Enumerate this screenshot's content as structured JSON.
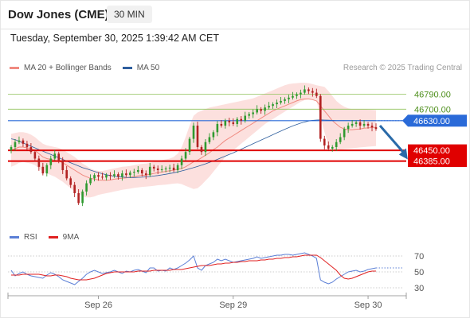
{
  "header": {
    "title": "Dow Jones (CME)",
    "interval": "30 MIN",
    "datetime": "Tuesday, September 30, 2025 1:39:42 AM CET"
  },
  "legend": {
    "price": [
      {
        "label": "MA 20 + Bollinger Bands",
        "color": "#f08a80"
      },
      {
        "label": "MA 50",
        "color": "#2f5f9e"
      }
    ],
    "rsi": [
      {
        "label": "RSI",
        "color": "#5b7fd6"
      },
      {
        "label": "9MA",
        "color": "#e02020"
      }
    ],
    "credit": "Research © 2025 Trading Central"
  },
  "chart_data": [
    {
      "type": "candlestick",
      "name": "price",
      "ylim": [
        46050,
        46880
      ],
      "levels": [
        {
          "value": 46790,
          "label": "46790.00",
          "kind": "resistance",
          "color": "#8fc25a"
        },
        {
          "value": 46700,
          "label": "46700.00",
          "kind": "resistance",
          "color": "#8fc25a"
        },
        {
          "value": 46630,
          "label": "46630.00",
          "kind": "current",
          "color": "#2a6ad8"
        },
        {
          "value": 46450,
          "label": "46450.00",
          "kind": "support",
          "color": "#e00000"
        },
        {
          "value": 46385,
          "label": "46385.00",
          "kind": "support",
          "color": "#e00000"
        }
      ],
      "x_ticks": [
        {
          "label": "Sep 26",
          "index": 22
        },
        {
          "label": "Sep 29",
          "index": 56
        },
        {
          "label": "Sep 30",
          "index": 90
        }
      ],
      "forecast_arrow": {
        "from_index": 93,
        "from_value": 46600,
        "to_index": 100,
        "to_value": 46395,
        "color": "#2a6aa8"
      },
      "closes": [
        46470,
        46500,
        46510,
        46490,
        46470,
        46440,
        46400,
        46350,
        46310,
        46360,
        46400,
        46430,
        46390,
        46330,
        46280,
        46240,
        46190,
        46130,
        46200,
        46250,
        46280,
        46300,
        46290,
        46285,
        46300,
        46295,
        46305,
        46290,
        46310,
        46300,
        46315,
        46320,
        46330,
        46310,
        46300,
        46350,
        46340,
        46330,
        46335,
        46340,
        46345,
        46330,
        46360,
        46400,
        46440,
        46520,
        46600,
        46470,
        46440,
        46500,
        46530,
        46560,
        46610,
        46600,
        46630,
        46620,
        46610,
        46640,
        46630,
        46660,
        46670,
        46680,
        46700,
        46690,
        46710,
        46720,
        46730,
        46740,
        46750,
        46760,
        46770,
        46780,
        46790,
        46800,
        46820,
        46810,
        46800,
        46780,
        46520,
        46480,
        46460,
        46470,
        46500,
        46530,
        46580,
        46600,
        46610,
        46620,
        46600,
        46610,
        46600,
        46590,
        46580
      ],
      "ma20": [
        46450,
        46460,
        46470,
        46470,
        46465,
        46460,
        46450,
        46430,
        46410,
        46400,
        46395,
        46390,
        46385,
        46375,
        46360,
        46345,
        46330,
        46315,
        46300,
        46290,
        46280,
        46275,
        46270,
        46268,
        46268,
        46270,
        46275,
        46278,
        46280,
        46283,
        46287,
        46290,
        46295,
        46298,
        46300,
        46305,
        46310,
        46315,
        46318,
        46322,
        46326,
        46330,
        46335,
        46340,
        46350,
        46365,
        46380,
        46390,
        46405,
        46420,
        46435,
        46455,
        46470,
        46490,
        46510,
        46525,
        46540,
        46555,
        46570,
        46585,
        46600,
        46615,
        46630,
        46645,
        46660,
        46675,
        46690,
        46700,
        46710,
        46720,
        46730,
        46740,
        46750,
        46758,
        46762,
        46762,
        46758,
        46750,
        46720,
        46690,
        46660,
        46630,
        46610,
        46590,
        46580,
        46575,
        46575,
        46578,
        46580,
        46584,
        46586,
        46588,
        46590
      ],
      "bb_upper": [
        46550,
        46555,
        46560,
        46560,
        46555,
        46545,
        46530,
        46510,
        46490,
        46480,
        46475,
        46470,
        46465,
        46455,
        46440,
        46425,
        46410,
        46390,
        46370,
        46355,
        46340,
        46330,
        46325,
        46325,
        46330,
        46335,
        46340,
        46345,
        46350,
        46352,
        46355,
        46360,
        46365,
        46368,
        46370,
        46375,
        46380,
        46385,
        46390,
        46395,
        46400,
        46410,
        46430,
        46470,
        46530,
        46600,
        46660,
        46680,
        46690,
        46700,
        46710,
        46715,
        46720,
        46725,
        46730,
        46735,
        46740,
        46745,
        46750,
        46755,
        46760,
        46765,
        46775,
        46785,
        46795,
        46805,
        46815,
        46825,
        46835,
        46845,
        46852,
        46856,
        46858,
        46860,
        46860,
        46858,
        46852,
        46845,
        46840,
        46835,
        46810,
        46780,
        46750,
        46730,
        46715,
        46705,
        46700,
        46700,
        46700,
        46700,
        46698,
        46696,
        46694
      ],
      "bb_lower": [
        46350,
        46360,
        46375,
        46380,
        46375,
        46370,
        46360,
        46340,
        46320,
        46310,
        46300,
        46290,
        46275,
        46260,
        46240,
        46220,
        46200,
        46185,
        46170,
        46165,
        46165,
        46170,
        46180,
        46185,
        46190,
        46195,
        46200,
        46205,
        46210,
        46214,
        46218,
        46222,
        46225,
        46228,
        46230,
        46232,
        46235,
        46238,
        46240,
        46242,
        46245,
        46248,
        46250,
        46245,
        46235,
        46225,
        46215,
        46220,
        46240,
        46265,
        46290,
        46320,
        46350,
        46380,
        46410,
        46430,
        46450,
        46470,
        46490,
        46510,
        46530,
        46550,
        46570,
        46590,
        46610,
        46625,
        46640,
        46655,
        46670,
        46685,
        46700,
        46715,
        46730,
        46745,
        46755,
        46760,
        46760,
        46755,
        46650,
        46560,
        46480,
        46460,
        46455,
        46455,
        46458,
        46460,
        46462,
        46465,
        46468,
        46470,
        46472,
        46474,
        46476
      ],
      "ma50": [
        46520,
        46515,
        46505,
        46495,
        46485,
        46475,
        46465,
        46455,
        46445,
        46435,
        46425,
        46415,
        46405,
        46395,
        46385,
        46375,
        46365,
        46355,
        46345,
        46338,
        46330,
        46322,
        46315,
        46308,
        46302,
        46297,
        46293,
        46290,
        46288,
        46286,
        46285,
        46285,
        46286,
        46287,
        46289,
        46291,
        46294,
        46297,
        46301,
        46305,
        46309,
        46314,
        46319,
        46325,
        46331,
        46338,
        46345,
        46352,
        46360,
        46368,
        46377,
        46386,
        46395,
        46405,
        46415,
        46425,
        46435,
        46446,
        46457,
        46468,
        46479,
        46490,
        46501,
        46512,
        46523,
        46534,
        46545,
        46556,
        46567,
        46578,
        46588,
        46598,
        46607,
        46615,
        46622,
        46628,
        46632,
        46634,
        46635,
        46634,
        46633,
        46632,
        46631,
        46631,
        46631,
        46631,
        46631,
        46631,
        46631,
        46631,
        46631,
        46631,
        46631
      ]
    },
    {
      "type": "line",
      "name": "rsi",
      "ylim": [
        20,
        80
      ],
      "y_ticks": [
        70,
        50,
        30
      ],
      "series": [
        {
          "name": "RSI",
          "values": [
            52,
            45,
            48,
            50,
            47,
            45,
            44,
            43,
            42,
            46,
            49,
            47,
            44,
            40,
            38,
            36,
            34,
            38,
            42,
            47,
            50,
            52,
            50,
            48,
            49,
            50,
            52,
            50,
            48,
            51,
            50,
            52,
            53,
            51,
            49,
            55,
            55,
            51,
            52,
            51,
            55,
            53,
            55,
            58,
            61,
            65,
            70,
            55,
            52,
            58,
            60,
            62,
            66,
            64,
            66,
            64,
            62,
            63,
            64,
            65,
            66,
            67,
            69,
            67,
            68,
            69,
            70,
            71,
            71,
            72,
            72,
            71,
            72,
            73,
            74,
            72,
            70,
            67,
            40,
            37,
            35,
            37,
            41,
            44,
            47,
            50,
            51,
            52,
            50,
            51,
            53,
            54,
            55
          ]
        },
        {
          "name": "9MA",
          "values": [
            46,
            46,
            46,
            47,
            47,
            47,
            47,
            47,
            46,
            45,
            45,
            46,
            46,
            45,
            44,
            42,
            41,
            40,
            40,
            40,
            41,
            42,
            44,
            46,
            48,
            49,
            50,
            50,
            50,
            50,
            50,
            50,
            51,
            51,
            51,
            51,
            52,
            52,
            52,
            52,
            52,
            53,
            53,
            53,
            54,
            55,
            56,
            57,
            58,
            58,
            58,
            59,
            60,
            60,
            61,
            61,
            62,
            62,
            63,
            63,
            64,
            64,
            64,
            65,
            65,
            66,
            66,
            67,
            67,
            68,
            68,
            69,
            69,
            70,
            71,
            71,
            71,
            71,
            68,
            64,
            60,
            56,
            52,
            46,
            42,
            41,
            42,
            44,
            46,
            48,
            50,
            51,
            51
          ]
        }
      ]
    }
  ]
}
